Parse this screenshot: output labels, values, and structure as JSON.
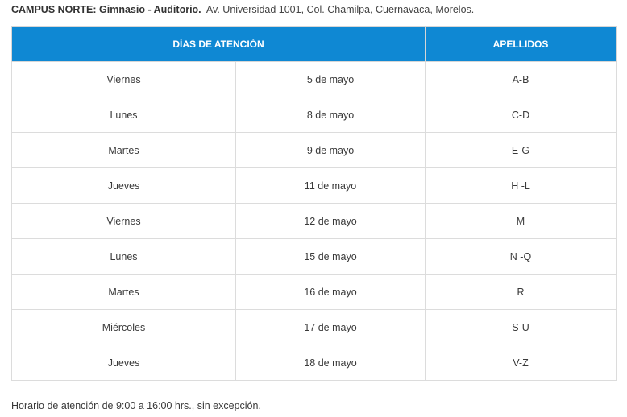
{
  "heading": {
    "campus": "CAMPUS NORTE: Gimnasio - Auditorio.",
    "address": "Av. Universidad 1001, Col. Chamilpa, Cuernavaca, Morelos."
  },
  "table": {
    "header_days": "DÍAS DE ATENCIÓN",
    "header_surnames": "APELLIDOS",
    "rows": [
      {
        "day": "Viernes",
        "date": "5 de mayo",
        "surnames": "A-B"
      },
      {
        "day": "Lunes",
        "date": "8 de mayo",
        "surnames": "C-D"
      },
      {
        "day": "Martes",
        "date": "9 de mayo",
        "surnames": "E-G"
      },
      {
        "day": "Jueves",
        "date": "11 de mayo",
        "surnames": "H -L"
      },
      {
        "day": "Viernes",
        "date": "12 de mayo",
        "surnames": "M"
      },
      {
        "day": "Lunes",
        "date": "15 de mayo",
        "surnames": "N -Q"
      },
      {
        "day": "Martes",
        "date": "16 de mayo",
        "surnames": "R"
      },
      {
        "day": "Miércoles",
        "date": "17 de mayo",
        "surnames": "S-U"
      },
      {
        "day": "Jueves",
        "date": "18 de mayo",
        "surnames": "V-Z"
      }
    ]
  },
  "footer": {
    "note": "Horario de atención de 9:00 a 16:00 hrs., sin excepción."
  }
}
